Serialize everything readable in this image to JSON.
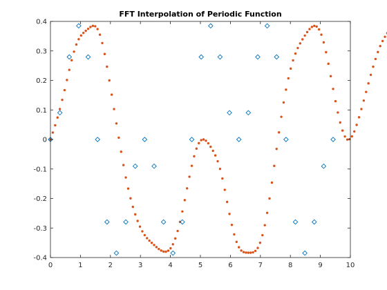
{
  "chart_data": {
    "type": "scatter",
    "title": "FFT Interpolation of Periodic Function",
    "xlabel": "",
    "ylabel": "",
    "xlim": [
      0,
      10
    ],
    "ylim": [
      -0.4,
      0.4
    ],
    "xticks": [
      0,
      1,
      2,
      3,
      4,
      5,
      6,
      7,
      8,
      9,
      10
    ],
    "yticks": [
      -0.4,
      -0.3,
      -0.2,
      -0.1,
      0,
      0.1,
      0.2,
      0.3,
      0.4
    ],
    "xtick_labels": [
      "0",
      "1",
      "2",
      "3",
      "4",
      "5",
      "6",
      "7",
      "8",
      "9",
      "10"
    ],
    "ytick_labels": [
      "-0.4",
      "-0.3",
      "-0.2",
      "-0.1",
      "0",
      "0.1",
      "0.2",
      "0.3",
      "0.4"
    ],
    "grid": false,
    "box": true,
    "series": [
      {
        "marker": "diamond",
        "color": "#0072BD",
        "fill": "#ffffff",
        "x": [
          0,
          0.314,
          0.628,
          0.942,
          1.257,
          1.571,
          1.885,
          2.199,
          2.513,
          2.827,
          3.142,
          3.456,
          3.77,
          4.084,
          4.398,
          4.712,
          5.027,
          5.341,
          5.655,
          5.969,
          6.283,
          6.597,
          6.912,
          7.226,
          7.54,
          7.854,
          8.168,
          8.482,
          8.796,
          9.111,
          9.425
        ],
        "y": [
          0,
          0.0905,
          0.2795,
          0.3849,
          0.2795,
          0,
          -0.2795,
          -0.3849,
          -0.2795,
          -0.0905,
          0,
          -0.0905,
          -0.2795,
          -0.3849,
          -0.2795,
          0,
          0.2795,
          0.3849,
          0.2795,
          0.0905,
          0,
          0.0905,
          0.2795,
          0.3849,
          0.2795,
          0,
          -0.2795,
          -0.3849,
          -0.2795,
          -0.0905,
          0
        ]
      },
      {
        "marker": "dot",
        "color": "#D95319",
        "x_start": 0,
        "x_step": 0.07854,
        "y": [
          0,
          0.0235,
          0.048,
          0.0744,
          0.103,
          0.1341,
          0.1672,
          0.2016,
          0.2359,
          0.2685,
          0.2976,
          0.3217,
          0.3397,
          0.3523,
          0.361,
          0.368,
          0.3748,
          0.3811,
          0.3849,
          0.3835,
          0.3741,
          0.3551,
          0.3265,
          0.2895,
          0.2466,
          0.2,
          0.1518,
          0.103,
          0.0543,
          0.006,
          -0.0414,
          -0.0867,
          -0.1287,
          -0.1664,
          -0.1994,
          -0.2283,
          -0.2538,
          -0.276,
          -0.2952,
          -0.3112,
          -0.3241,
          -0.3343,
          -0.3427,
          -0.3502,
          -0.3575,
          -0.3645,
          -0.3711,
          -0.3763,
          -0.3796,
          -0.3801,
          -0.3768,
          -0.3687,
          -0.355,
          -0.3354,
          -0.31,
          -0.2792,
          -0.2439,
          -0.2055,
          -0.1656,
          -0.1262,
          -0.0893,
          -0.057,
          -0.031,
          -0.0125,
          -0.0023,
          0,
          -0.0042,
          -0.013,
          -0.0248,
          -0.0384,
          -0.0541,
          -0.0738,
          -0.0996,
          -0.1323,
          -0.1706,
          -0.2117,
          -0.2523,
          -0.2895,
          -0.3214,
          -0.3469,
          -0.3651,
          -0.3762,
          -0.3815,
          -0.3832,
          -0.3836,
          -0.3836,
          -0.3822,
          -0.3776,
          -0.3674,
          -0.3499,
          -0.3243,
          -0.2904,
          -0.2486,
          -0.2,
          -0.1462,
          -0.0895,
          -0.032,
          0.024,
          0.0768,
          0.1253,
          0.1688,
          0.2072,
          0.2402,
          0.268,
          0.291,
          0.3098,
          0.3255,
          0.3393,
          0.352,
          0.3638,
          0.374,
          0.3814,
          0.3849,
          0.3826,
          0.3729,
          0.3551,
          0.329,
          0.2956,
          0.2565,
          0.2143,
          0.1713,
          0.1297,
          0.0914,
          0.0577,
          0.0302,
          0.0101,
          -0.0004,
          0.001,
          0.0104,
          0.0271,
          0.0494,
          0.0752,
          0.103,
          0.1318,
          0.161,
          0.1902,
          0.2189,
          0.2466,
          0.2727,
          0.2962,
          0.3165,
          0.3335,
          0.3479,
          0.3603,
          0.3713,
          0.3801,
          0.3849,
          0.3834,
          0.3734,
          0.3535,
          0.3232,
          0.2837,
          0.2376,
          0.1882,
          0.1378,
          0.0877,
          0.0383,
          -0.011,
          -0.0602,
          -0.1083,
          -0.1534,
          -0.1936,
          -0.2276,
          -0.2555,
          -0.2787,
          -0.2989,
          -0.3172,
          -0.3336,
          -0.347,
          -0.3566,
          -0.363,
          -0.3682,
          -0.3744,
          -0.3812,
          -0.3849,
          -0.3803,
          -0.3632,
          -0.3327,
          -0.2917,
          -0.2459,
          -0.2,
          -0.1569,
          -0.1173,
          -0.0806,
          -0.0467,
          -0.0164,
          0.0069
        ]
      }
    ]
  }
}
